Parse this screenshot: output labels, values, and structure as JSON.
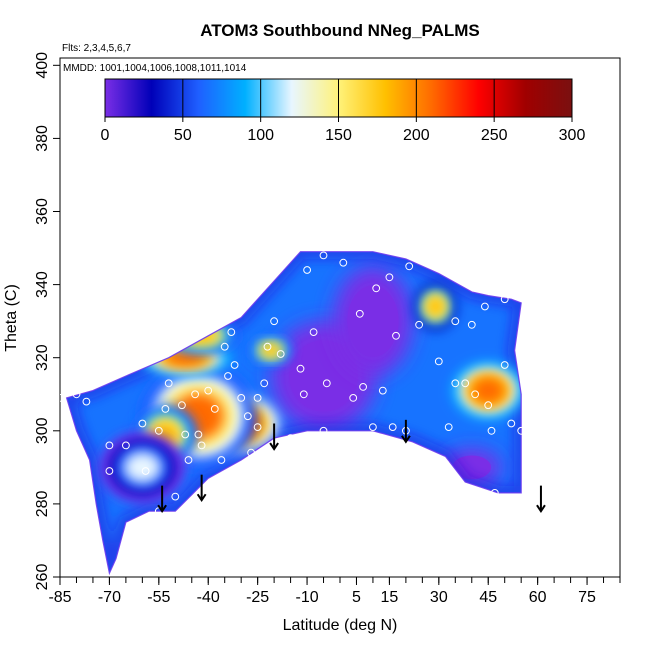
{
  "chart_data": {
    "type": "heatmap",
    "title": "ATOM3 Southbound NNeg_PALMS",
    "subtitle_flights": "Flts: 2,3,4,5,6,7",
    "subtitle_dates": "MMDD: 1001,1004,1006,1008,1011,1014",
    "xlabel": "Latitude (deg N)",
    "ylabel": "Theta (C)",
    "xlim": [
      -85,
      85
    ],
    "ylim": [
      260,
      402
    ],
    "x_ticks": [
      -85,
      -70,
      -55,
      -40,
      -25,
      -10,
      5,
      15,
      30,
      45,
      60,
      75
    ],
    "y_ticks": [
      260,
      280,
      300,
      320,
      340,
      360,
      380,
      400
    ],
    "colorbar": {
      "min": 0,
      "max": 300,
      "ticks": [
        0,
        50,
        100,
        150,
        200,
        250,
        300
      ],
      "colors": [
        "#7a2ee6",
        "#0000b8",
        "#1f5fff",
        "#00b0ff",
        "#e8f6ff",
        "#fff27a",
        "#ffc000",
        "#ff6a00",
        "#ff0000",
        "#a00000",
        "#7a1010"
      ]
    },
    "outline": [
      [
        -70,
        261
      ],
      [
        -72,
        270
      ],
      [
        -74,
        280
      ],
      [
        -76,
        292
      ],
      [
        -80,
        300
      ],
      [
        -83,
        309
      ],
      [
        -75,
        311
      ],
      [
        -65,
        315
      ],
      [
        -52,
        320
      ],
      [
        -40,
        326
      ],
      [
        -30,
        331
      ],
      [
        -20,
        341
      ],
      [
        -12,
        349
      ],
      [
        -5,
        349
      ],
      [
        10,
        349
      ],
      [
        20,
        347
      ],
      [
        30,
        343
      ],
      [
        40,
        338
      ],
      [
        45,
        337
      ],
      [
        52,
        336
      ],
      [
        55,
        335
      ],
      [
        53,
        322
      ],
      [
        55,
        310
      ],
      [
        55,
        296
      ],
      [
        55,
        283
      ],
      [
        48,
        283
      ],
      [
        38,
        286
      ],
      [
        32,
        293
      ],
      [
        22,
        297
      ],
      [
        10,
        300
      ],
      [
        -10,
        300
      ],
      [
        -20,
        298
      ],
      [
        -30,
        292
      ],
      [
        -40,
        287
      ],
      [
        -50,
        278
      ],
      [
        -58,
        278
      ],
      [
        -65,
        275
      ],
      [
        -68,
        265
      ]
    ],
    "hotspots": [
      {
        "x": -33,
        "y": 302,
        "value": 260,
        "rx": 9,
        "ry": 5
      },
      {
        "x": -43,
        "y": 304,
        "value": 200,
        "rx": 11,
        "ry": 9
      },
      {
        "x": -53,
        "y": 299,
        "value": 190,
        "rx": 6,
        "ry": 5
      },
      {
        "x": -47,
        "y": 320,
        "value": 215,
        "rx": 9,
        "ry": 3
      },
      {
        "x": -42,
        "y": 326,
        "value": 190,
        "rx": 7,
        "ry": 3
      },
      {
        "x": -21,
        "y": 322,
        "value": 185,
        "rx": 4,
        "ry": 2.5
      },
      {
        "x": 45,
        "y": 311,
        "value": 220,
        "rx": 7,
        "ry": 5
      },
      {
        "x": 29,
        "y": 334,
        "value": 180,
        "rx": 4,
        "ry": 4
      },
      {
        "x": -60,
        "y": 290,
        "value": 110,
        "rx": 8,
        "ry": 6
      }
    ],
    "cold_zones": [
      {
        "x": -5,
        "y": 315,
        "rx": 16,
        "ry": 15
      },
      {
        "x": 10,
        "y": 330,
        "rx": 12,
        "ry": 15
      },
      {
        "x": 40,
        "y": 290,
        "rx": 9,
        "ry": 5
      }
    ],
    "points": [
      [
        -85,
        309
      ],
      [
        -80,
        310
      ],
      [
        -77,
        308
      ],
      [
        -70,
        289
      ],
      [
        -70,
        296
      ],
      [
        -65,
        296
      ],
      [
        -60,
        302
      ],
      [
        -59,
        289
      ],
      [
        -57,
        276
      ],
      [
        -55,
        300
      ],
      [
        -55,
        278
      ],
      [
        -53,
        306
      ],
      [
        -52,
        313
      ],
      [
        -50,
        282
      ],
      [
        -48,
        307
      ],
      [
        -47,
        299
      ],
      [
        -46,
        292
      ],
      [
        -46,
        277
      ],
      [
        -44,
        310
      ],
      [
        -43,
        299
      ],
      [
        -42,
        296
      ],
      [
        -41,
        282
      ],
      [
        -40,
        311
      ],
      [
        -38,
        306
      ],
      [
        -36,
        292
      ],
      [
        -35,
        323
      ],
      [
        -34,
        315
      ],
      [
        -33,
        327
      ],
      [
        -32,
        318
      ],
      [
        -30,
        309
      ],
      [
        -28,
        304
      ],
      [
        -27,
        294
      ],
      [
        -25,
        301
      ],
      [
        -25,
        309
      ],
      [
        -23,
        313
      ],
      [
        -22,
        323
      ],
      [
        -20,
        330
      ],
      [
        -18,
        321
      ],
      [
        -15,
        298
      ],
      [
        -12,
        317
      ],
      [
        -11,
        310
      ],
      [
        -10,
        344
      ],
      [
        -8,
        327
      ],
      [
        -5,
        348
      ],
      [
        -5,
        300
      ],
      [
        -4,
        313
      ],
      [
        1,
        346
      ],
      [
        4,
        309
      ],
      [
        6,
        332
      ],
      [
        7,
        312
      ],
      [
        10,
        301
      ],
      [
        11,
        339
      ],
      [
        13,
        311
      ],
      [
        15,
        342
      ],
      [
        16,
        301
      ],
      [
        17,
        326
      ],
      [
        20,
        300
      ],
      [
        21,
        345
      ],
      [
        24,
        329
      ],
      [
        30,
        319
      ],
      [
        30,
        290
      ],
      [
        32,
        291
      ],
      [
        33,
        301
      ],
      [
        35,
        313
      ],
      [
        35,
        330
      ],
      [
        36,
        282
      ],
      [
        38,
        313
      ],
      [
        40,
        329
      ],
      [
        41,
        310
      ],
      [
        44,
        334
      ],
      [
        45,
        307
      ],
      [
        46,
        300
      ],
      [
        47,
        283
      ],
      [
        50,
        318
      ],
      [
        50,
        336
      ],
      [
        52,
        302
      ],
      [
        55,
        300
      ],
      [
        56,
        325
      ],
      [
        57,
        335
      ]
    ],
    "arrows": [
      {
        "x": -54,
        "y_top": 285,
        "y_bottom": 278
      },
      {
        "x": -42,
        "y_top": 288,
        "y_bottom": 281
      },
      {
        "x": -20,
        "y_top": 302,
        "y_bottom": 295
      },
      {
        "x": 20,
        "y_top": 303,
        "y_bottom": 297
      },
      {
        "x": 61,
        "y_top": 285,
        "y_bottom": 278
      }
    ]
  }
}
